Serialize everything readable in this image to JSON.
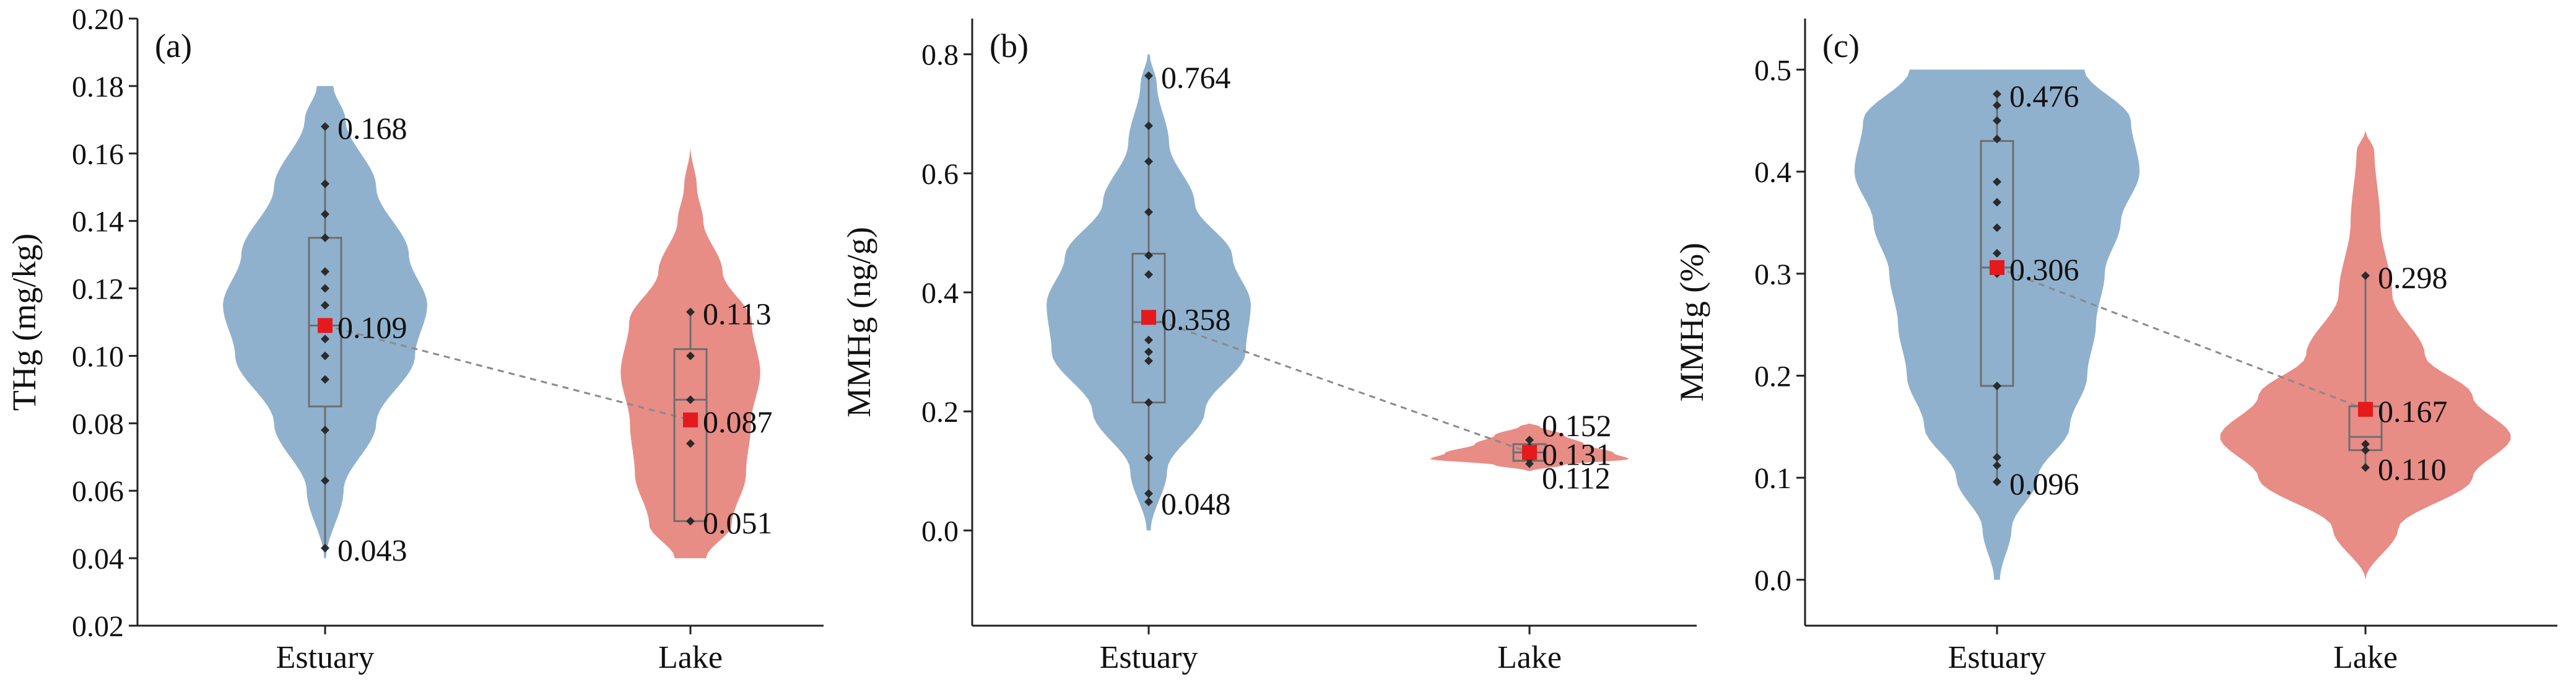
{
  "colors": {
    "estuary_fill": "#8FB1CE",
    "lake_fill": "#E88C86",
    "mean_marker": "#E41A1C",
    "box_stroke": "#6E6E6E",
    "axis": "#222222",
    "connector": "#8A8A8A"
  },
  "chart_data": [
    {
      "type": "violin",
      "panel_label": "(a)",
      "ylabel": "THg (mg/kg)",
      "ylim": [
        0.02,
        0.2
      ],
      "yticks": [
        "0.02",
        "0.04",
        "0.06",
        "0.08",
        "0.10",
        "0.12",
        "0.14",
        "0.16",
        "0.18",
        "0.20"
      ],
      "categories": [
        "Estuary",
        "Lake"
      ],
      "series": [
        {
          "name": "Estuary",
          "min": 0.043,
          "q1": 0.085,
          "median": 0.109,
          "q3": 0.135,
          "max": 0.168,
          "mean": 0.109,
          "points": [
            0.043,
            0.063,
            0.078,
            0.093,
            0.1,
            0.105,
            0.11,
            0.115,
            0.12,
            0.125,
            0.135,
            0.142,
            0.151,
            0.168
          ],
          "labels": [
            "0.168",
            "0.109",
            "0.043"
          ],
          "density": [
            [
              0.04,
              0.01
            ],
            [
              0.06,
              0.18
            ],
            [
              0.08,
              0.5
            ],
            [
              0.1,
              0.88
            ],
            [
              0.115,
              1.0
            ],
            [
              0.13,
              0.82
            ],
            [
              0.15,
              0.5
            ],
            [
              0.17,
              0.2
            ],
            [
              0.18,
              0.08
            ]
          ]
        },
        {
          "name": "Lake",
          "min": 0.051,
          "q1": 0.051,
          "median": 0.087,
          "q3": 0.102,
          "max": 0.113,
          "mean": 0.081,
          "points": [
            0.051,
            0.074,
            0.081,
            0.087,
            0.1,
            0.113
          ],
          "labels": [
            "0.113",
            "0.087",
            "0.051"
          ],
          "density": [
            [
              0.04,
              0.22
            ],
            [
              0.05,
              0.58
            ],
            [
              0.065,
              0.78
            ],
            [
              0.08,
              0.85
            ],
            [
              0.095,
              0.98
            ],
            [
              0.11,
              0.86
            ],
            [
              0.125,
              0.45
            ],
            [
              0.14,
              0.18
            ],
            [
              0.15,
              0.09
            ],
            [
              0.162,
              0.0
            ]
          ]
        }
      ]
    },
    {
      "type": "violin",
      "panel_label": "(b)",
      "ylabel": "MMHg (ng/g)",
      "ylim": [
        -0.16,
        0.86
      ],
      "yticks": [
        "0.0",
        "0.2",
        "0.4",
        "0.6",
        "0.8"
      ],
      "categories": [
        "Estuary",
        "Lake"
      ],
      "series": [
        {
          "name": "Estuary",
          "min": 0.048,
          "q1": 0.215,
          "median": 0.35,
          "q3": 0.465,
          "max": 0.764,
          "mean": 0.358,
          "points": [
            0.048,
            0.062,
            0.122,
            0.215,
            0.285,
            0.3,
            0.32,
            0.36,
            0.43,
            0.462,
            0.535,
            0.62,
            0.68,
            0.764
          ],
          "labels": [
            "0.764",
            "0.358",
            "0.048"
          ],
          "density": [
            [
              0.0,
              0.02
            ],
            [
              0.1,
              0.18
            ],
            [
              0.2,
              0.55
            ],
            [
              0.3,
              0.95
            ],
            [
              0.38,
              1.0
            ],
            [
              0.46,
              0.82
            ],
            [
              0.55,
              0.45
            ],
            [
              0.65,
              0.2
            ],
            [
              0.75,
              0.08
            ],
            [
              0.8,
              0.01
            ]
          ]
        },
        {
          "name": "Lake",
          "min": 0.112,
          "q1": 0.117,
          "median": 0.131,
          "q3": 0.145,
          "max": 0.152,
          "mean": 0.131,
          "points": [
            0.112,
            0.12,
            0.131,
            0.14,
            0.152
          ],
          "labels": [
            "0.152",
            "0.131",
            "0.112"
          ],
          "density": [
            [
              0.1,
              0.02
            ],
            [
              0.11,
              0.35
            ],
            [
              0.12,
              1.0
            ],
            [
              0.13,
              0.85
            ],
            [
              0.145,
              0.55
            ],
            [
              0.16,
              0.35
            ],
            [
              0.175,
              0.1
            ],
            [
              0.18,
              0.0
            ]
          ]
        }
      ]
    },
    {
      "type": "violin",
      "panel_label": "(c)",
      "ylabel": "MMHg (%)",
      "ylim": [
        -0.045,
        0.55
      ],
      "yticks": [
        "0.0",
        "0.1",
        "0.2",
        "0.3",
        "0.4",
        "0.5"
      ],
      "categories": [
        "Estuary",
        "Lake"
      ],
      "series": [
        {
          "name": "Estuary",
          "min": 0.096,
          "q1": 0.19,
          "median": 0.306,
          "q3": 0.43,
          "max": 0.476,
          "mean": 0.306,
          "points": [
            0.096,
            0.112,
            0.12,
            0.19,
            0.3,
            0.32,
            0.345,
            0.37,
            0.39,
            0.432,
            0.45,
            0.465,
            0.476
          ],
          "labels": [
            "0.476",
            "0.306",
            "0.096"
          ],
          "density": [
            [
              0.0,
              0.02
            ],
            [
              0.05,
              0.1
            ],
            [
              0.1,
              0.28
            ],
            [
              0.15,
              0.5
            ],
            [
              0.2,
              0.62
            ],
            [
              0.25,
              0.68
            ],
            [
              0.3,
              0.74
            ],
            [
              0.35,
              0.85
            ],
            [
              0.4,
              0.98
            ],
            [
              0.45,
              0.92
            ],
            [
              0.5,
              0.6
            ]
          ]
        },
        {
          "name": "Lake",
          "min": 0.11,
          "q1": 0.127,
          "median": 0.14,
          "q3": 0.17,
          "max": 0.298,
          "mean": 0.167,
          "points": [
            0.11,
            0.127,
            0.133,
            0.167,
            0.298
          ],
          "labels": [
            "0.298",
            "0.167",
            "0.110"
          ],
          "density": [
            [
              0.0,
              0.0
            ],
            [
              0.05,
              0.22
            ],
            [
              0.1,
              0.72
            ],
            [
              0.14,
              0.98
            ],
            [
              0.18,
              0.72
            ],
            [
              0.22,
              0.4
            ],
            [
              0.28,
              0.18
            ],
            [
              0.35,
              0.1
            ],
            [
              0.42,
              0.06
            ],
            [
              0.44,
              0.0
            ]
          ]
        }
      ]
    }
  ]
}
